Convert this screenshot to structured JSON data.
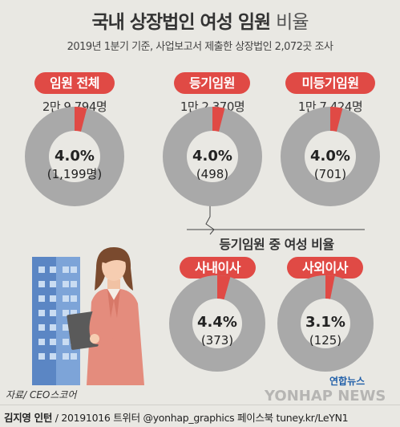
{
  "title_main": "국내 상장법인 여성 임원",
  "title_light": "비율",
  "subtitle": "2019년 1분기 기준, 사업보고서 제출한 상장법인 2,072곳 조사",
  "section_title": "등기임원 중 여성 비율",
  "colors": {
    "accent": "#e04a45",
    "ring": "#a9a9a9",
    "background": "#e9e8e3"
  },
  "chart_data": [
    {
      "type": "pie",
      "label": "임원 전체",
      "total": "2만 9,794명",
      "categories": [
        "여성",
        "기타"
      ],
      "values": [
        4.0,
        96.0
      ],
      "percent_text": "4.0%",
      "count_text": "(1,199명)"
    },
    {
      "type": "pie",
      "label": "등기임원",
      "total": "1만 2,370명",
      "categories": [
        "여성",
        "기타"
      ],
      "values": [
        4.0,
        96.0
      ],
      "percent_text": "4.0%",
      "count_text": "(498)"
    },
    {
      "type": "pie",
      "label": "미등기임원",
      "total": "1만 7,424명",
      "categories": [
        "여성",
        "기타"
      ],
      "values": [
        4.0,
        96.0
      ],
      "percent_text": "4.0%",
      "count_text": "(701)"
    },
    {
      "type": "pie",
      "label": "사내이사",
      "total": "",
      "categories": [
        "여성",
        "기타"
      ],
      "values": [
        4.4,
        95.6
      ],
      "percent_text": "4.4%",
      "count_text": "(373)"
    },
    {
      "type": "pie",
      "label": "사외이사",
      "total": "",
      "categories": [
        "여성",
        "기타"
      ],
      "values": [
        3.1,
        96.9
      ],
      "percent_text": "3.1%",
      "count_text": "(125)"
    }
  ],
  "footer": {
    "source": "자료/ CEO스코어",
    "author": "김지영 인턴",
    "credit_rest": " / 20191016  트위터 @yonhap_graphics  페이스북 tuney.kr/LeYN1",
    "logo": "연합뉴스",
    "watermark": "YONHAP NEWS"
  }
}
